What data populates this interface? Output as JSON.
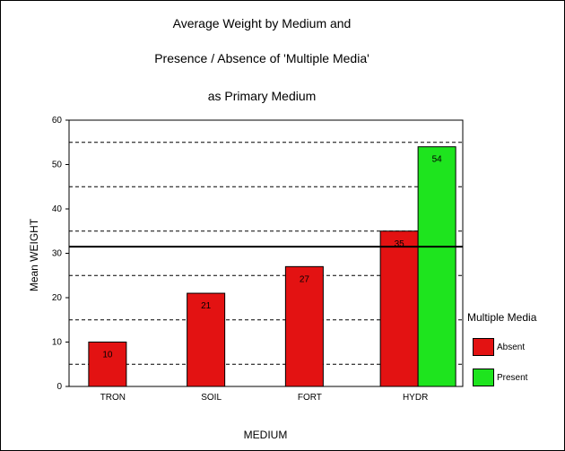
{
  "titles": [
    "Average Weight by Medium and",
    "Presence / Absence of 'Multiple Media'",
    "as Primary Medium"
  ],
  "chart_data": {
    "type": "bar",
    "categories": [
      "TRON",
      "SOIL",
      "FORT",
      "HYDR"
    ],
    "series": [
      {
        "name": "Absent",
        "color": "#e31212",
        "values": [
          10,
          21,
          27,
          35
        ],
        "labels": [
          "10",
          "21",
          "27",
          "35"
        ]
      },
      {
        "name": "Present",
        "color": "#1ee41e",
        "values": [
          null,
          null,
          null,
          54
        ],
        "labels": [
          null,
          null,
          null,
          "54"
        ]
      }
    ],
    "ylim": [
      0,
      60
    ],
    "yticks": [
      0,
      10,
      20,
      30,
      40,
      50,
      60
    ],
    "dashed_gridlines": [
      5,
      15,
      25,
      35,
      45,
      55
    ],
    "reference_line": 31.5,
    "xlabel": "MEDIUM",
    "ylabel": "Mean WEIGHT",
    "legend_title": "Multiple Media",
    "legend_position": "right"
  }
}
